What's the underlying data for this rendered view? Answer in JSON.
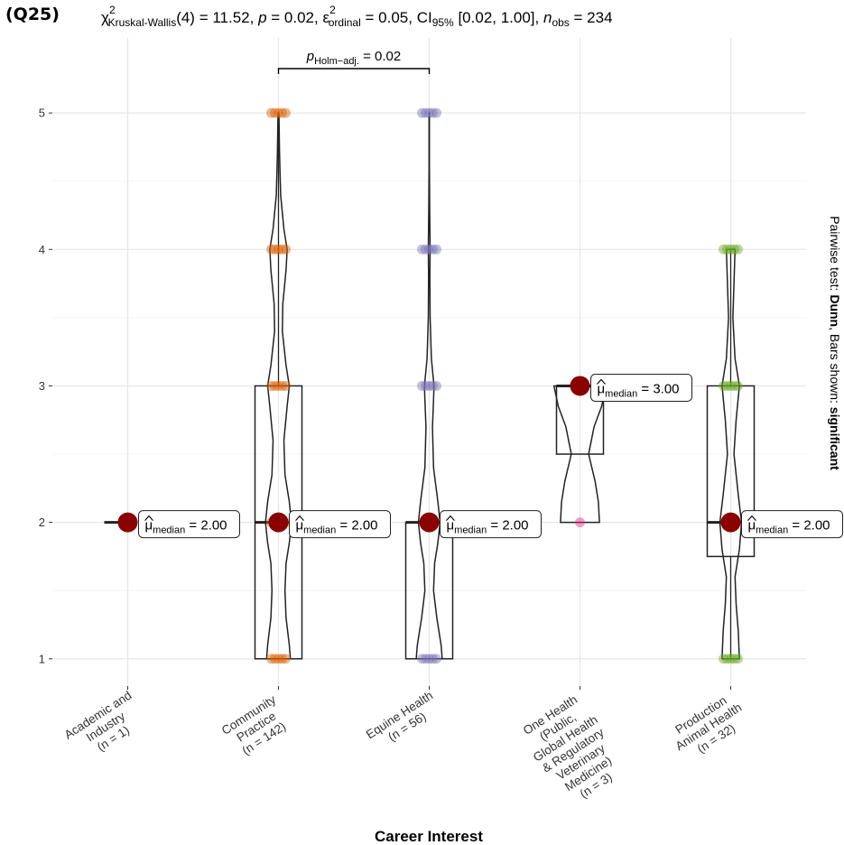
{
  "chart_data": {
    "type": "violin-box",
    "panel_tag": "(Q25)",
    "subtitle": {
      "chi": "χ",
      "chi_sup": "2",
      "chi_sub": "Kruskal-Wallis",
      "df_text": "(4) = 11.52, ",
      "p_letter": "p",
      "p_text": " = 0.02, ",
      "eps": "ε",
      "eps_sup": "2",
      "eps_sub": "ordinal",
      "eps_text": " = 0.05, CI",
      "ci_sub": "95%",
      "ci_text": " [0.02, 1.00], ",
      "n_letter": "n",
      "n_sub": "obs",
      "n_text": " = 234"
    },
    "caption": {
      "prefix": "Pairwise test: ",
      "test": "Dunn",
      "middle": ", Bars shown: ",
      "shown": "significant"
    },
    "xlabel": "Career  Interest",
    "ylabel": "",
    "ylim": [
      0.8,
      5.55
    ],
    "yticks": [
      1,
      2,
      3,
      4,
      5
    ],
    "grid": true,
    "categories": [
      {
        "name_lines": [
          "Academic and",
          "Industry",
          "(n = 1)"
        ],
        "n": 1,
        "color": "#1B9E77",
        "box": null,
        "violin": null,
        "points": [],
        "median": 2,
        "median_label_value": "2.00"
      },
      {
        "name_lines": [
          "Community",
          "Practice",
          "(n = 142)"
        ],
        "n": 142,
        "color": "#D95F02",
        "box": {
          "q1": 1,
          "median": 2,
          "q3": 3,
          "whisker_low": 1,
          "whisker_high": 5
        },
        "violin": {
          "ymin": 1,
          "ymax": 5,
          "profile": [
            [
              1.0,
              0.055
            ],
            [
              1.1,
              0.05
            ],
            [
              1.3,
              0.035
            ],
            [
              1.5,
              0.03
            ],
            [
              1.7,
              0.035
            ],
            [
              1.85,
              0.05
            ],
            [
              2.0,
              0.06
            ],
            [
              2.15,
              0.05
            ],
            [
              2.35,
              0.03
            ],
            [
              2.6,
              0.025
            ],
            [
              2.85,
              0.04
            ],
            [
              3.0,
              0.05
            ],
            [
              3.15,
              0.035
            ],
            [
              3.4,
              0.018
            ],
            [
              3.6,
              0.02
            ],
            [
              3.85,
              0.035
            ],
            [
              4.0,
              0.04
            ],
            [
              4.15,
              0.025
            ],
            [
              4.4,
              0.01
            ],
            [
              4.7,
              0.005
            ],
            [
              5.0,
              0.002
            ]
          ]
        },
        "points": [
          1,
          2,
          3,
          4,
          5
        ],
        "median": 2,
        "median_label_value": "2.00"
      },
      {
        "name_lines": [
          "Equine Health",
          "(n = 56)"
        ],
        "n": 56,
        "color": "#7570B3",
        "box": {
          "q1": 1,
          "median": 2,
          "q3": 2,
          "whisker_low": 1,
          "whisker_high": 2
        },
        "violin": {
          "ymin": 1,
          "ymax": 5,
          "profile": [
            [
              1.0,
              0.06
            ],
            [
              1.1,
              0.055
            ],
            [
              1.3,
              0.035
            ],
            [
              1.5,
              0.02
            ],
            [
              1.7,
              0.025
            ],
            [
              1.85,
              0.04
            ],
            [
              2.0,
              0.05
            ],
            [
              2.15,
              0.04
            ],
            [
              2.4,
              0.02
            ],
            [
              2.7,
              0.015
            ],
            [
              2.9,
              0.02
            ],
            [
              3.0,
              0.022
            ],
            [
              3.2,
              0.01
            ],
            [
              3.5,
              0.004
            ],
            [
              3.8,
              0.003
            ],
            [
              4.0,
              0.004
            ],
            [
              4.3,
              0.002
            ],
            [
              4.6,
              0.001
            ],
            [
              5.0,
              0.001
            ]
          ]
        },
        "points": [
          1,
          3,
          4,
          5
        ],
        "median": 2,
        "median_label_value": "2.00"
      },
      {
        "name_lines": [
          "One Health",
          "(Public,",
          "Global Health",
          "& Regulatory",
          "Veterinary",
          "Medicine)",
          "(n = 3)"
        ],
        "n": 3,
        "color": "#E7298A",
        "box": {
          "q1": 2.5,
          "median": 3,
          "q3": 3,
          "whisker_low": 2.5,
          "whisker_high": 3
        },
        "violin": {
          "ymin": 2,
          "ymax": 3,
          "profile": [
            [
              2.0,
              0.09
            ],
            [
              2.15,
              0.085
            ],
            [
              2.3,
              0.07
            ],
            [
              2.5,
              0.04
            ],
            [
              2.7,
              0.065
            ],
            [
              2.85,
              0.1
            ],
            [
              3.0,
              0.12
            ]
          ]
        },
        "points": [
          2,
          3
        ],
        "median": 3,
        "median_label_value": "3.00"
      },
      {
        "name_lines": [
          "Production",
          "Animal Health",
          "(n = 32)"
        ],
        "n": 32,
        "color": "#66A61E",
        "box": {
          "q1": 1.75,
          "median": 2,
          "q3": 3,
          "whisker_low": 1,
          "whisker_high": 4
        },
        "violin": {
          "ymin": 1,
          "ymax": 4,
          "profile": [
            [
              1.0,
              0.04
            ],
            [
              1.2,
              0.035
            ],
            [
              1.4,
              0.025
            ],
            [
              1.6,
              0.02
            ],
            [
              1.8,
              0.04
            ],
            [
              2.0,
              0.05
            ],
            [
              2.2,
              0.035
            ],
            [
              2.5,
              0.015
            ],
            [
              2.75,
              0.025
            ],
            [
              3.0,
              0.04
            ],
            [
              3.2,
              0.02
            ],
            [
              3.5,
              0.01
            ],
            [
              3.75,
              0.015
            ],
            [
              4.0,
              0.02
            ]
          ]
        },
        "points": [
          1,
          3,
          4
        ],
        "median": 2,
        "median_label_value": "2.00"
      }
    ],
    "median_label": {
      "mu": "μ",
      "sub": "median",
      "eq": " = "
    },
    "significance_bars": [
      {
        "from": 1,
        "to": 2,
        "p_letter": "p",
        "p_sub": "Holm−adj.",
        "p_text": " = 0.02"
      }
    ]
  }
}
